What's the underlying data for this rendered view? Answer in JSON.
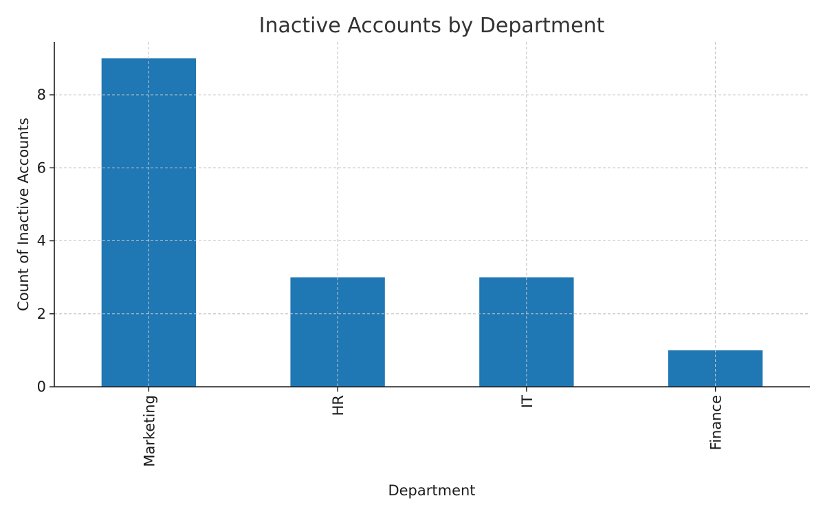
{
  "chart_data": {
    "type": "bar",
    "title": "Inactive Accounts by Department",
    "xlabel": "Department",
    "ylabel": "Count of Inactive Accounts",
    "categories": [
      "Marketing",
      "HR",
      "IT",
      "Finance"
    ],
    "values": [
      9,
      3,
      3,
      1
    ],
    "ylim": [
      0,
      9.45
    ],
    "yticks": [
      0,
      2,
      4,
      6,
      8
    ],
    "grid": true,
    "bar_color": "#1f77b4",
    "x_tick_rotation": "vertical"
  }
}
